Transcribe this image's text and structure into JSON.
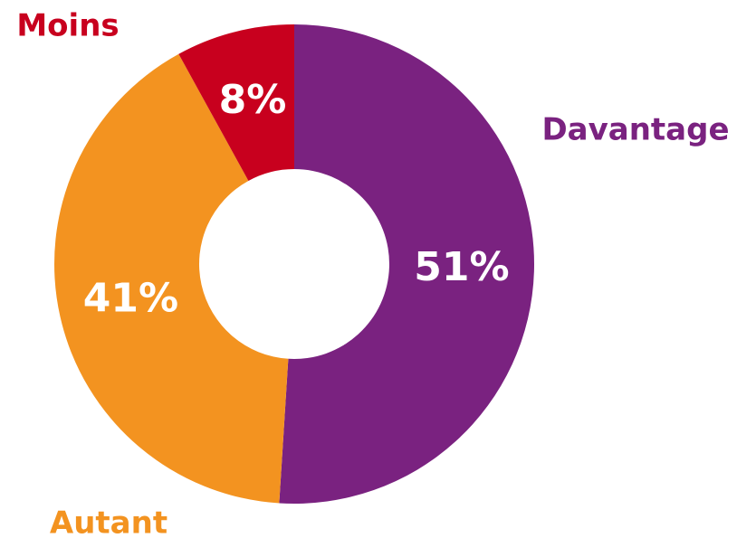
{
  "chart_data": {
    "type": "donut",
    "categories": [
      "Davantage",
      "Autant",
      "Moins"
    ],
    "values": [
      51,
      41,
      8
    ],
    "value_labels": [
      "51%",
      "41%",
      "8%"
    ],
    "colors": [
      "#7a2280",
      "#f39320",
      "#c8001e"
    ]
  }
}
